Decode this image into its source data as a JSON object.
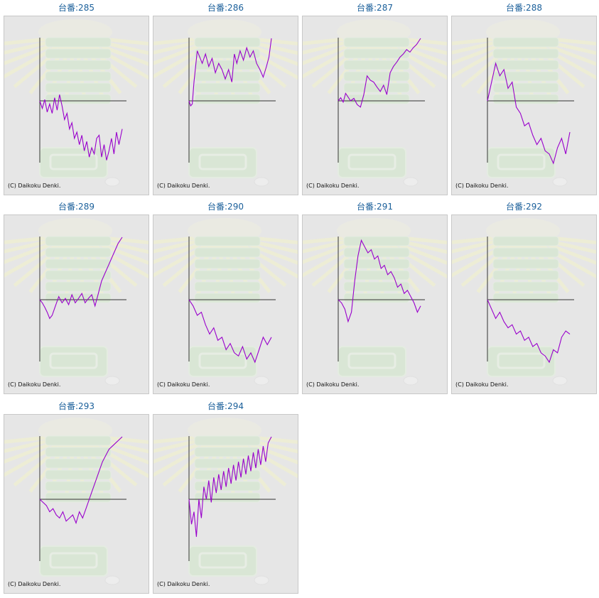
{
  "colors": {
    "line": "#9900cc",
    "title": "#1a5f9a",
    "axis": "#333333",
    "panel_bg": "#e6e6e6"
  },
  "copyright": "(C) Daikoku Denki.",
  "chart_data": [
    {
      "type": "line",
      "title": "台番:285",
      "x": [
        0,
        0.03,
        0.06,
        0.09,
        0.12,
        0.15,
        0.18,
        0.21,
        0.24,
        0.27,
        0.3,
        0.33,
        0.36,
        0.39,
        0.42,
        0.45,
        0.48,
        0.51,
        0.54,
        0.57,
        0.6,
        0.63,
        0.66,
        0.69,
        0.72,
        0.75,
        0.78,
        0.81,
        0.84,
        0.87,
        0.9,
        0.93,
        0.96,
        1.0
      ],
      "y": [
        0,
        -0.12,
        0.02,
        -0.18,
        -0.05,
        -0.2,
        0.05,
        -0.15,
        0.1,
        -0.08,
        -0.3,
        -0.2,
        -0.45,
        -0.35,
        -0.6,
        -0.5,
        -0.7,
        -0.55,
        -0.8,
        -0.65,
        -0.9,
        -0.75,
        -0.85,
        -0.6,
        -0.55,
        -0.9,
        -0.7,
        -0.95,
        -0.8,
        -0.6,
        -0.85,
        -0.5,
        -0.7,
        -0.45
      ]
    },
    {
      "type": "line",
      "title": "台番:286",
      "x": [
        0,
        0.02,
        0.04,
        0.06,
        0.08,
        0.1,
        0.13,
        0.16,
        0.2,
        0.24,
        0.28,
        0.32,
        0.36,
        0.4,
        0.44,
        0.48,
        0.52,
        0.55,
        0.58,
        0.62,
        0.66,
        0.7,
        0.74,
        0.78,
        0.82,
        0.86,
        0.9,
        0.94,
        0.97,
        1.0
      ],
      "y": [
        0,
        -0.08,
        -0.05,
        0.3,
        0.55,
        0.8,
        0.7,
        0.6,
        0.75,
        0.55,
        0.68,
        0.45,
        0.6,
        0.5,
        0.35,
        0.5,
        0.3,
        0.75,
        0.6,
        0.8,
        0.65,
        0.85,
        0.7,
        0.8,
        0.6,
        0.5,
        0.38,
        0.55,
        0.7,
        1.0
      ]
    },
    {
      "type": "line",
      "title": "台番:287",
      "x": [
        0,
        0.03,
        0.06,
        0.09,
        0.12,
        0.15,
        0.19,
        0.23,
        0.27,
        0.31,
        0.35,
        0.39,
        0.43,
        0.47,
        0.51,
        0.55,
        0.59,
        0.63,
        0.67,
        0.71,
        0.75,
        0.79,
        0.83,
        0.87,
        0.91,
        0.95,
        1.0
      ],
      "y": [
        0,
        0.05,
        -0.02,
        0.12,
        0.06,
        0.0,
        0.04,
        -0.06,
        -0.1,
        0.1,
        0.4,
        0.33,
        0.3,
        0.22,
        0.15,
        0.25,
        0.1,
        0.45,
        0.55,
        0.62,
        0.7,
        0.75,
        0.82,
        0.78,
        0.85,
        0.9,
        1.0
      ]
    },
    {
      "type": "line",
      "title": "台番:288",
      "x": [
        0,
        0.05,
        0.1,
        0.15,
        0.2,
        0.25,
        0.3,
        0.35,
        0.4,
        0.45,
        0.5,
        0.55,
        0.6,
        0.65,
        0.7,
        0.75,
        0.8,
        0.85,
        0.9,
        0.95,
        1.0
      ],
      "y": [
        0,
        0.3,
        0.6,
        0.4,
        0.5,
        0.2,
        0.3,
        -0.1,
        -0.2,
        -0.4,
        -0.35,
        -0.55,
        -0.7,
        -0.6,
        -0.8,
        -0.85,
        -1.0,
        -0.75,
        -0.6,
        -0.85,
        -0.5
      ]
    },
    {
      "type": "line",
      "title": "台番:289",
      "x": [
        0,
        0.03,
        0.06,
        0.09,
        0.12,
        0.15,
        0.19,
        0.23,
        0.27,
        0.31,
        0.35,
        0.39,
        0.43,
        0.47,
        0.51,
        0.55,
        0.59,
        0.63,
        0.67,
        0.71,
        0.75,
        0.8,
        0.85,
        0.9,
        0.95,
        1.0
      ],
      "y": [
        0,
        -0.05,
        -0.12,
        -0.2,
        -0.3,
        -0.25,
        -0.1,
        0.05,
        -0.05,
        0.02,
        -0.08,
        0.08,
        -0.05,
        0.02,
        0.1,
        -0.05,
        0.02,
        0.08,
        -0.1,
        0.1,
        0.3,
        0.45,
        0.6,
        0.75,
        0.9,
        1.0
      ]
    },
    {
      "type": "line",
      "title": "台番:290",
      "x": [
        0,
        0.05,
        0.1,
        0.15,
        0.2,
        0.25,
        0.3,
        0.35,
        0.4,
        0.45,
        0.5,
        0.55,
        0.6,
        0.65,
        0.7,
        0.75,
        0.8,
        0.85,
        0.9,
        0.95,
        1.0
      ],
      "y": [
        0,
        -0.1,
        -0.25,
        -0.2,
        -0.4,
        -0.55,
        -0.45,
        -0.65,
        -0.6,
        -0.8,
        -0.7,
        -0.85,
        -0.9,
        -0.75,
        -0.95,
        -0.85,
        -1.0,
        -0.8,
        -0.6,
        -0.72,
        -0.6
      ]
    },
    {
      "type": "line",
      "title": "台番:291",
      "x": [
        0,
        0.04,
        0.08,
        0.12,
        0.16,
        0.2,
        0.24,
        0.28,
        0.32,
        0.36,
        0.4,
        0.44,
        0.48,
        0.52,
        0.56,
        0.6,
        0.64,
        0.68,
        0.72,
        0.76,
        0.8,
        0.84,
        0.88,
        0.92,
        0.96,
        1.0
      ],
      "y": [
        0,
        -0.05,
        -0.15,
        -0.35,
        -0.2,
        0.3,
        0.7,
        0.95,
        0.85,
        0.75,
        0.8,
        0.65,
        0.7,
        0.5,
        0.55,
        0.4,
        0.45,
        0.35,
        0.2,
        0.25,
        0.1,
        0.15,
        0.05,
        -0.05,
        -0.2,
        -0.1
      ]
    },
    {
      "type": "line",
      "title": "台番:292",
      "x": [
        0,
        0.05,
        0.1,
        0.15,
        0.2,
        0.25,
        0.3,
        0.35,
        0.4,
        0.45,
        0.5,
        0.55,
        0.6,
        0.65,
        0.7,
        0.75,
        0.8,
        0.85,
        0.9,
        0.95,
        1.0
      ],
      "y": [
        0,
        -0.15,
        -0.3,
        -0.2,
        -0.35,
        -0.45,
        -0.4,
        -0.55,
        -0.5,
        -0.65,
        -0.6,
        -0.75,
        -0.7,
        -0.85,
        -0.9,
        -1.0,
        -0.8,
        -0.85,
        -0.6,
        -0.5,
        -0.55
      ]
    },
    {
      "type": "line",
      "title": "台番:293",
      "x": [
        0,
        0.04,
        0.08,
        0.12,
        0.16,
        0.2,
        0.24,
        0.28,
        0.32,
        0.36,
        0.4,
        0.44,
        0.48,
        0.52,
        0.56,
        0.6,
        0.64,
        0.68,
        0.72,
        0.76,
        0.8,
        0.84,
        0.88,
        0.92,
        0.96,
        1.0
      ],
      "y": [
        0,
        -0.05,
        -0.1,
        -0.2,
        -0.15,
        -0.25,
        -0.3,
        -0.2,
        -0.35,
        -0.3,
        -0.25,
        -0.38,
        -0.2,
        -0.3,
        -0.15,
        0.0,
        0.15,
        0.3,
        0.45,
        0.6,
        0.7,
        0.8,
        0.85,
        0.9,
        0.95,
        1.0
      ]
    },
    {
      "type": "line",
      "title": "台番:294",
      "x": [
        0,
        0.03,
        0.06,
        0.09,
        0.12,
        0.15,
        0.18,
        0.21,
        0.24,
        0.27,
        0.3,
        0.33,
        0.36,
        0.39,
        0.42,
        0.45,
        0.48,
        0.51,
        0.54,
        0.57,
        0.6,
        0.63,
        0.66,
        0.69,
        0.72,
        0.75,
        0.78,
        0.81,
        0.84,
        0.87,
        0.9,
        0.93,
        0.96,
        1.0
      ],
      "y": [
        0,
        -0.4,
        -0.2,
        -0.6,
        0.0,
        -0.3,
        0.2,
        0.0,
        0.3,
        -0.05,
        0.35,
        0.1,
        0.4,
        0.15,
        0.45,
        0.2,
        0.5,
        0.25,
        0.55,
        0.3,
        0.6,
        0.35,
        0.65,
        0.4,
        0.7,
        0.45,
        0.75,
        0.5,
        0.8,
        0.55,
        0.85,
        0.6,
        0.9,
        1.0
      ]
    }
  ]
}
